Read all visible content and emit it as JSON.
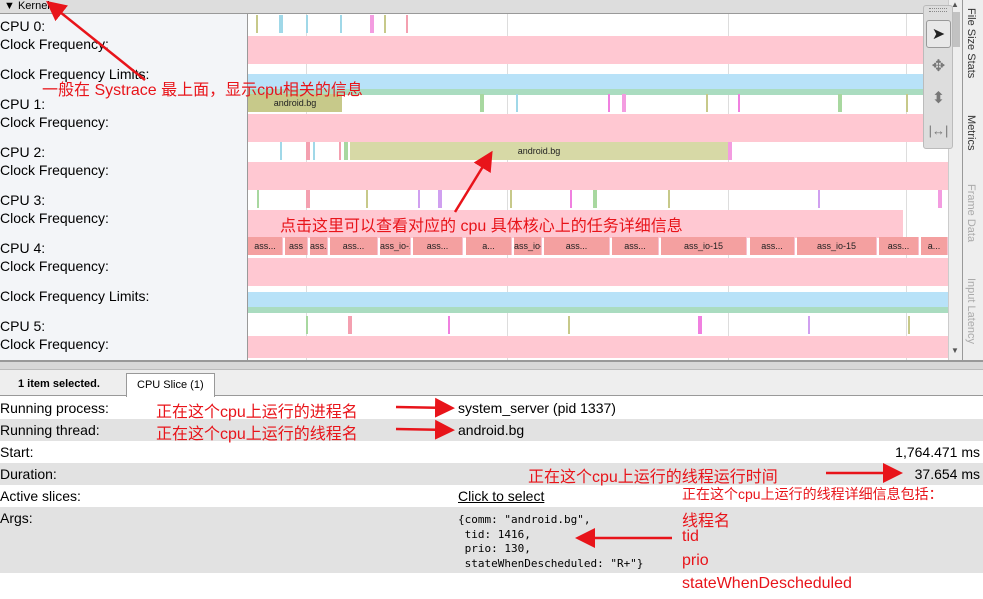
{
  "header": {
    "title": "Kernel",
    "toggle_icon": "triangle-down"
  },
  "tracks": [
    {
      "label": "CPU 0:"
    },
    {
      "label": "Clock Frequency:"
    },
    {
      "label": "Clock Frequency Limits:"
    },
    {
      "label": "CPU 1:"
    },
    {
      "label": "Clock Frequency:"
    },
    {
      "label": "CPU 2:"
    },
    {
      "label": "Clock Frequency:"
    },
    {
      "label": "CPU 3:"
    },
    {
      "label": "Clock Frequency:"
    },
    {
      "label": "CPU 4:"
    },
    {
      "label": "Clock Frequency:"
    },
    {
      "label": "Clock Frequency Limits:"
    },
    {
      "label": "CPU 5:"
    },
    {
      "label": "Clock Frequency:"
    }
  ],
  "slices": {
    "cpu1": "android.bg",
    "cpu2": "android.bg",
    "cpu4": [
      "ass...",
      "ass",
      "ass...",
      "ass...",
      "ass_io-15",
      "ass...",
      "a...",
      "ass_io-15",
      "ass...",
      "ass...",
      "ass_io-15",
      "ass...",
      "ass_io-15",
      "ass...",
      "a..."
    ]
  },
  "side_tabs": [
    "File Size Stats",
    "Metrics",
    "Frame Data",
    "Input Latency"
  ],
  "tools": [
    "select-arrow",
    "pan",
    "zoom",
    "timing"
  ],
  "bottom": {
    "status": "1 item selected.",
    "tab": "CPU Slice (1)",
    "rows": [
      {
        "key": "Running process:",
        "value": "system_server (pid 1337)"
      },
      {
        "key": "Running thread:",
        "value": "android.bg"
      },
      {
        "key": "Start:",
        "value": "1,764.471 ms"
      },
      {
        "key": "Duration:",
        "value": "37.654 ms"
      },
      {
        "key": "Active slices:",
        "value": "Click to select"
      },
      {
        "key": "Args:",
        "value": "{comm: \"android.bg\",\n tid: 1416,\n prio: 130,\n stateWhenDescheduled: \"R+\"}"
      }
    ]
  },
  "annotations": {
    "a1": "一般在 Systrace 最上面，显示cpu相关的信息",
    "a2": "点击这里可以查看对应的 cpu 具体核心上的任务详细信息",
    "a3": "正在这个cpu上运行的进程名",
    "a4": "正在这个cpu上运行的线程名",
    "a5": "正在这个cpu上运行的线程运行时间",
    "a6": "正在这个cpu上运行的线程详细信息包括：",
    "a7": "线程名",
    "a8": "tid",
    "a9": "prio",
    "a10": "stateWhenDescheduled"
  },
  "colors": {
    "freq": "#ffc8d2",
    "limit_blue": "#b8e2f8",
    "limit_green": "#aadcc0",
    "slice_olive": "#c7c98a",
    "cpu4_slice": "#f4a0a0",
    "annotation": "#e8141a"
  }
}
